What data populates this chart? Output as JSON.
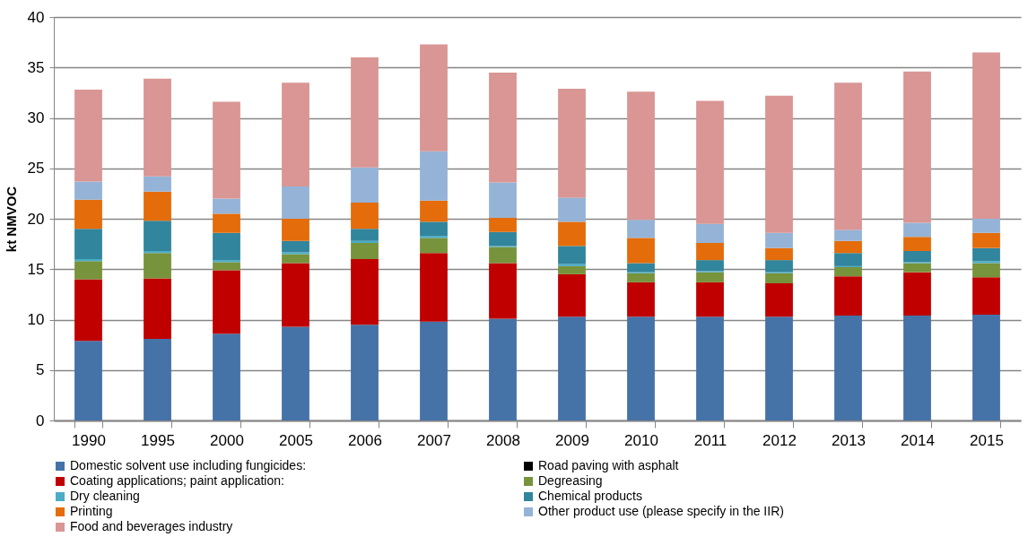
{
  "chart_data": {
    "type": "bar",
    "ylabel": "kt NMVOC",
    "stacked": true,
    "categories": [
      "1990",
      "1995",
      "2000",
      "2005",
      "2006",
      "2007",
      "2008",
      "2009",
      "2010",
      "2011",
      "2012",
      "2013",
      "2014",
      "2015"
    ],
    "series": [
      {
        "name": "Domestic solvent use including fungicides:",
        "color": "#4572a7",
        "values": [
          7.9,
          8.1,
          8.6,
          9.3,
          9.5,
          9.8,
          10.1,
          10.3,
          10.3,
          10.3,
          10.3,
          10.4,
          10.4,
          10.5
        ]
      },
      {
        "name": "Road paving with asphalt",
        "color": "#000000",
        "values": [
          0,
          0,
          0,
          0,
          0,
          0,
          0,
          0,
          0,
          0,
          0,
          0,
          0,
          0
        ]
      },
      {
        "name": "Coating applications; paint application:",
        "color": "#c00000",
        "values": [
          6.1,
          6.0,
          6.3,
          6.3,
          6.5,
          6.8,
          5.5,
          4.2,
          3.4,
          3.4,
          3.3,
          3.9,
          4.3,
          3.7
        ]
      },
      {
        "name": "Degreasing",
        "color": "#77933c",
        "values": [
          1.8,
          2.5,
          0.8,
          0.9,
          1.6,
          1.5,
          1.6,
          0.8,
          0.9,
          1.0,
          1.0,
          0.9,
          0.9,
          1.4
        ]
      },
      {
        "name": "Dry cleaning",
        "color": "#4bacc6",
        "values": [
          0.2,
          0.2,
          0.2,
          0.2,
          0.2,
          0.2,
          0.1,
          0.2,
          0.1,
          0.1,
          0.1,
          0.1,
          0.1,
          0.2
        ]
      },
      {
        "name": "Chemical products",
        "color": "#31859c",
        "values": [
          3.0,
          3.0,
          2.7,
          1.1,
          1.2,
          1.4,
          1.4,
          1.8,
          0.9,
          1.1,
          1.2,
          1.3,
          1.1,
          1.3
        ]
      },
      {
        "name": "Printing",
        "color": "#e46c0a",
        "values": [
          2.9,
          2.9,
          1.9,
          2.2,
          2.6,
          2.1,
          1.4,
          2.4,
          2.5,
          1.7,
          1.2,
          1.2,
          1.4,
          1.5
        ]
      },
      {
        "name": "Other product use (please specify in the IIR)",
        "color": "#95b3d7",
        "values": [
          1.8,
          1.5,
          1.5,
          3.2,
          3.5,
          4.9,
          3.5,
          2.4,
          1.8,
          1.9,
          1.5,
          1.1,
          1.4,
          1.4
        ]
      },
      {
        "name": "Food and beverages industry",
        "color": "#d99694",
        "values": [
          9.1,
          9.7,
          9.6,
          10.3,
          10.9,
          10.6,
          10.9,
          10.8,
          12.7,
          12.2,
          13.6,
          14.6,
          15.0,
          16.5
        ]
      }
    ],
    "ylim": [
      0,
      40
    ],
    "yticks": [
      0,
      5,
      10,
      15,
      20,
      25,
      30,
      35,
      40
    ],
    "grid": "y",
    "legend": "bottom"
  }
}
